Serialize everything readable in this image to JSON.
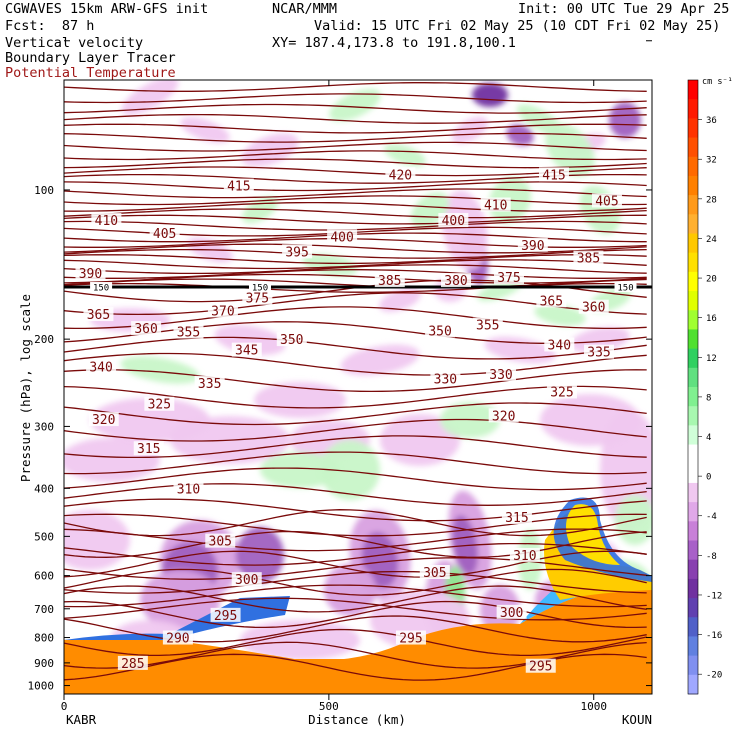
{
  "header": {
    "model": "CGWAVES 15km ARW-GFS init",
    "org": "NCAR/MMM",
    "init": "Init: 00 UTC Tue 29 Apr 25",
    "fcst": "Fcst:  87 h",
    "valid": "Valid: 15 UTC Fri 02 May 25 (10 CDT Fri 02 May 25)",
    "field1": "Vertical velocity",
    "xy": "XY= 187.4,173.8 to 191.8,100.1",
    "field2": "Boundary Layer Tracer",
    "field3": "Potential Temperature"
  },
  "colors": {
    "theta_contour": "#7a0a0a",
    "theta_label": "#7a0a0a"
  },
  "chart_data": {
    "type": "heatmap",
    "title": "",
    "xlabel": "Distance (km)",
    "ylabel": "Pressure (hPa), log scale",
    "x_ticks": [
      0,
      500,
      1000
    ],
    "x_ticks_labels": [
      "0",
      "500",
      "1000"
    ],
    "xlim": [
      0,
      1110
    ],
    "y_ticks": [
      100,
      200,
      300,
      400,
      500,
      600,
      700,
      800,
      900,
      1000
    ],
    "y_ticks_labels": [
      "100",
      "200",
      "300",
      "400",
      "500",
      "600",
      "700",
      "800",
      "900",
      "1000"
    ],
    "y_scale": "log",
    "ylim": [
      1040,
      60
    ],
    "endpoints": [
      "KABR",
      "KOUN"
    ],
    "colorbar": {
      "unit": "cm s⁻¹",
      "ticks": [
        36,
        32,
        28,
        24,
        20,
        16,
        12,
        8,
        4,
        0,
        -4,
        -8,
        -12,
        -16,
        -20
      ],
      "levels": [
        40,
        38,
        36,
        34,
        32,
        30,
        28,
        26,
        24,
        22,
        20,
        18,
        16,
        14,
        12,
        10,
        8,
        6,
        4,
        2,
        0,
        -2,
        -4,
        -6,
        -8,
        -10,
        -12,
        -14,
        -16,
        -18,
        -20,
        -22
      ],
      "colors": [
        "#ff0000",
        "#ff1a00",
        "#ff3300",
        "#ff5000",
        "#ff6a00",
        "#ff8000",
        "#ff9a1a",
        "#ffb030",
        "#ffc800",
        "#ffe000",
        "#ffff00",
        "#e0ff00",
        "#a0ff30",
        "#50e030",
        "#30d060",
        "#60e080",
        "#80f090",
        "#a8f8b0",
        "#d0ffd8",
        "#ffffff",
        "#ffffff",
        "#f0c8f0",
        "#e0a8e8",
        "#c880d8",
        "#a860c8",
        "#8840b0",
        "#7030a0",
        "#6040b0",
        "#5060c8",
        "#6080e0",
        "#8090f0",
        "#a0a8ff"
      ]
    },
    "theta_labels": [
      {
        "v": "420",
        "x": 635,
        "p": 93
      },
      {
        "v": "415",
        "x": 330,
        "p": 98
      },
      {
        "v": "415",
        "x": 925,
        "p": 93
      },
      {
        "v": "410",
        "x": 80,
        "p": 115
      },
      {
        "v": "410",
        "x": 815,
        "p": 107
      },
      {
        "v": "405",
        "x": 190,
        "p": 122
      },
      {
        "v": "405",
        "x": 1025,
        "p": 105
      },
      {
        "v": "400",
        "x": 525,
        "p": 124
      },
      {
        "v": "400",
        "x": 735,
        "p": 115
      },
      {
        "v": "395",
        "x": 440,
        "p": 133
      },
      {
        "v": "390",
        "x": 50,
        "p": 147
      },
      {
        "v": "390",
        "x": 885,
        "p": 129
      },
      {
        "v": "385",
        "x": 615,
        "p": 152
      },
      {
        "v": "385",
        "x": 990,
        "p": 137
      },
      {
        "v": "380",
        "x": 740,
        "p": 152
      },
      {
        "v": "375",
        "x": 365,
        "p": 165
      },
      {
        "v": "375",
        "x": 840,
        "p": 150
      },
      {
        "v": "370",
        "x": 300,
        "p": 175
      },
      {
        "v": "365",
        "x": 65,
        "p": 178
      },
      {
        "v": "365",
        "x": 920,
        "p": 167
      },
      {
        "v": "360",
        "x": 155,
        "p": 190
      },
      {
        "v": "360",
        "x": 1000,
        "p": 172
      },
      {
        "v": "355",
        "x": 235,
        "p": 193
      },
      {
        "v": "355",
        "x": 800,
        "p": 187
      },
      {
        "v": "350",
        "x": 430,
        "p": 200
      },
      {
        "v": "350",
        "x": 710,
        "p": 192
      },
      {
        "v": "345",
        "x": 345,
        "p": 210
      },
      {
        "v": "340",
        "x": 70,
        "p": 227
      },
      {
        "v": "340",
        "x": 935,
        "p": 205
      },
      {
        "v": "335",
        "x": 275,
        "p": 245
      },
      {
        "v": "335",
        "x": 1010,
        "p": 212
      },
      {
        "v": "330",
        "x": 720,
        "p": 240
      },
      {
        "v": "330",
        "x": 825,
        "p": 235
      },
      {
        "v": "325",
        "x": 180,
        "p": 270
      },
      {
        "v": "325",
        "x": 940,
        "p": 255
      },
      {
        "v": "320",
        "x": 75,
        "p": 290
      },
      {
        "v": "320",
        "x": 830,
        "p": 285
      },
      {
        "v": "315",
        "x": 160,
        "p": 332
      },
      {
        "v": "315",
        "x": 855,
        "p": 457
      },
      {
        "v": "310",
        "x": 235,
        "p": 400
      },
      {
        "v": "310",
        "x": 870,
        "p": 545
      },
      {
        "v": "305",
        "x": 295,
        "p": 510
      },
      {
        "v": "305",
        "x": 700,
        "p": 590
      },
      {
        "v": "300",
        "x": 345,
        "p": 610
      },
      {
        "v": "300",
        "x": 845,
        "p": 710
      },
      {
        "v": "295",
        "x": 305,
        "p": 720
      },
      {
        "v": "295",
        "x": 655,
        "p": 800
      },
      {
        "v": "295",
        "x": 900,
        "p": 912
      },
      {
        "v": "290",
        "x": 215,
        "p": 800
      },
      {
        "v": "285",
        "x": 130,
        "p": 900
      }
    ],
    "bold_line_labels": [
      {
        "v": "150",
        "x": 70,
        "p": 157
      },
      {
        "v": "150",
        "x": 370,
        "p": 157
      },
      {
        "v": "150",
        "x": 1060,
        "p": 157
      }
    ],
    "bold_line_pressure": 157
  }
}
